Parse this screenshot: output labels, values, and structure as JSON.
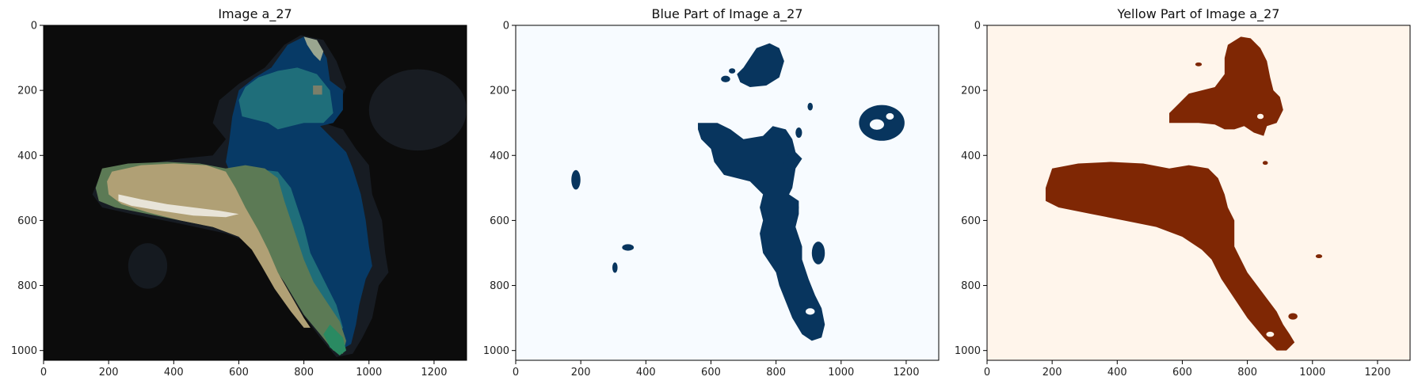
{
  "chart_data": [
    {
      "type": "heatmap",
      "title": "Image a_27",
      "xlim": [
        0,
        1300
      ],
      "ylim": [
        1030,
        0
      ],
      "xticks": [
        0,
        200,
        400,
        600,
        800,
        1000,
        1200
      ],
      "yticks": [
        0,
        200,
        400,
        600,
        800,
        1000
      ],
      "grid": false,
      "colors": {
        "background": "#0c0c0c",
        "haze": "#1a1f26",
        "dark_blue": "#073a66",
        "teal": "#1f6e7a",
        "olive": "#5c7a55",
        "tan": "#b0a075",
        "cream": "#e8e4d8",
        "green": "#2a8a62"
      }
    },
    {
      "type": "heatmap",
      "title": "Blue Part of Image a_27",
      "xlim": [
        0,
        1300
      ],
      "ylim": [
        1030,
        0
      ],
      "xticks": [
        0,
        200,
        400,
        600,
        800,
        1000,
        1200
      ],
      "yticks": [
        0,
        200,
        400,
        600,
        800,
        1000
      ],
      "grid": false,
      "colors": {
        "background": "#f7fbff",
        "mask": "#08355e"
      }
    },
    {
      "type": "heatmap",
      "title": "Yellow Part of Image a_27",
      "xlim": [
        0,
        1300
      ],
      "ylim": [
        1030,
        0
      ],
      "xticks": [
        0,
        200,
        400,
        600,
        800,
        1000,
        1200
      ],
      "yticks": [
        0,
        200,
        400,
        600,
        800,
        1000
      ],
      "grid": false,
      "colors": {
        "background": "#fff5eb",
        "mask": "#7f2704"
      }
    }
  ]
}
